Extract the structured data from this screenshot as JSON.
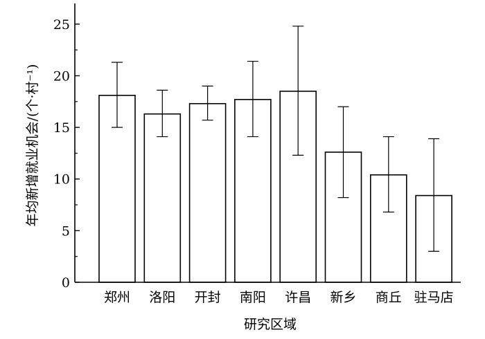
{
  "chart_data": {
    "type": "bar",
    "categories": [
      "郑州",
      "洛阳",
      "开封",
      "南阳",
      "许昌",
      "新乡",
      "商丘",
      "驻马店"
    ],
    "values": [
      18.1,
      16.3,
      17.3,
      17.7,
      18.5,
      12.6,
      10.4,
      8.4
    ],
    "error_low": [
      15.0,
      14.1,
      15.7,
      14.1,
      12.3,
      8.2,
      6.8,
      3.0
    ],
    "error_high": [
      21.3,
      18.6,
      19.0,
      21.4,
      24.8,
      17.0,
      14.1,
      13.9
    ],
    "xlabel": "研究区域",
    "ylabel": "年均新增就业机会/(个·村⁻¹)",
    "ylim": [
      0,
      27
    ],
    "yticks": [
      0,
      5,
      10,
      15,
      20,
      25
    ],
    "grid": false,
    "bar_fill": "#ffffff",
    "bar_stroke": "#000000"
  }
}
